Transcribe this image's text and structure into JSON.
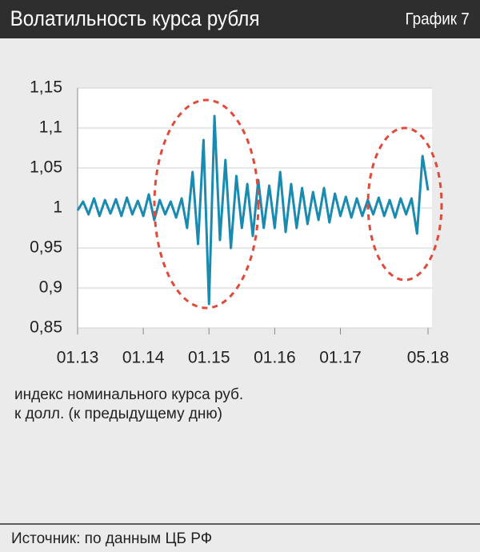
{
  "chart_data": {
    "type": "line",
    "title": "Волатильность курса рубля",
    "label": "График 7",
    "categories": [
      "01.13",
      null,
      null,
      null,
      null,
      null,
      null,
      null,
      null,
      null,
      null,
      null,
      "01.14",
      null,
      null,
      null,
      null,
      null,
      null,
      null,
      null,
      null,
      null,
      null,
      "01.15",
      null,
      null,
      null,
      null,
      null,
      null,
      null,
      null,
      null,
      null,
      null,
      "01.16",
      null,
      null,
      null,
      null,
      null,
      null,
      null,
      null,
      null,
      null,
      null,
      "01.17",
      null,
      null,
      null,
      null,
      null,
      null,
      null,
      null,
      null,
      null,
      null,
      null,
      null,
      null,
      null,
      "05.18"
    ],
    "series": [
      {
        "name": "индекс номинального курса руб. к долл. (к предыдущему дню)",
        "color": "#1a8bb0",
        "values": [
          0.997,
          1.008,
          0.992,
          1.012,
          0.99,
          1.01,
          0.993,
          1.011,
          0.99,
          1.013,
          0.992,
          1.009,
          0.99,
          1.017,
          0.985,
          1.01,
          0.992,
          1.008,
          0.988,
          1.012,
          0.975,
          1.045,
          0.955,
          1.085,
          0.88,
          1.115,
          0.96,
          1.06,
          0.95,
          1.04,
          0.975,
          1.03,
          0.965,
          1.035,
          0.975,
          1.028,
          0.975,
          1.045,
          0.97,
          1.03,
          0.975,
          1.025,
          0.98,
          1.02,
          0.985,
          1.025,
          0.982,
          1.018,
          0.99,
          1.014,
          0.988,
          1.012,
          0.99,
          1.01,
          0.992,
          1.013,
          0.99,
          1.01,
          0.988,
          1.012,
          0.992,
          1.012,
          0.968,
          1.065,
          1.022
        ]
      }
    ],
    "caption_lines": [
      "индекс номинального курса руб.",
      "к долл. (к предыдущему дню)"
    ],
    "source": "Источник: по данным ЦБ РФ",
    "ylim": [
      0.85,
      1.15
    ],
    "yticks": [
      {
        "value": 0.85,
        "label": "0,85"
      },
      {
        "value": 0.9,
        "label": "0,9"
      },
      {
        "value": 0.95,
        "label": "0,95"
      },
      1,
      {
        "value": 1.05,
        "label": "1,05"
      },
      {
        "value": 1.1,
        "label": "1,1"
      },
      {
        "value": 1.15,
        "label": "1,15"
      }
    ],
    "grid": true
  }
}
